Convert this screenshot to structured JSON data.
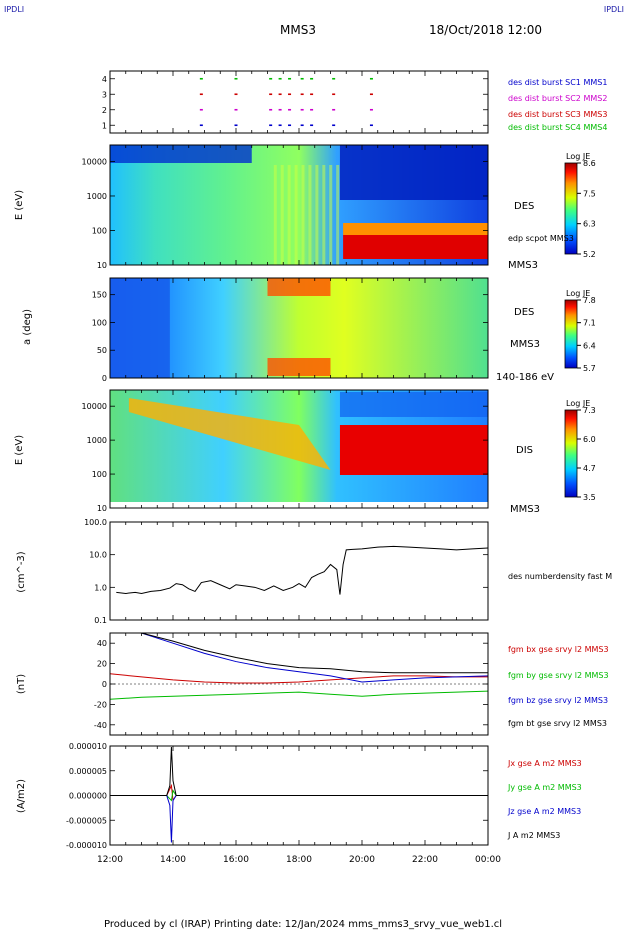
{
  "corner_label": "IPDLI",
  "header": {
    "spacecraft": "MMS3",
    "datetime": "18/Oct/2018 12:00"
  },
  "footer": "Produced by cl (IRAP)   Printing date: 12/Jan/2024   mms_mms3_srvy_vue_web1.cl",
  "x_ticks": [
    "12:00",
    "14:00",
    "16:00",
    "18:00",
    "20:00",
    "22:00",
    "00:00"
  ],
  "colors": {
    "mms1": "#0000cc",
    "mms2": "#cc00cc",
    "mms3": "#cc0000",
    "mms4": "#00bb00",
    "bt": "#000000"
  },
  "panels": {
    "burst": {
      "y_ticks": [
        "4",
        "3",
        "2",
        "1"
      ],
      "labels": [
        "des dist burst SC1 MMS1",
        "des dist burst SC2 MMS2",
        "des dist burst SC3 MMS3",
        "des dist burst SC4 MMS4"
      ]
    },
    "des_energy": {
      "ylabel": "E (eV)",
      "y_ticks": [
        "10000",
        "1000",
        "100",
        "10"
      ],
      "cb_title": "Log JE",
      "cb_ticks": [
        "8.6",
        "7.5",
        "6.3",
        "5.2"
      ],
      "label": "DES",
      "label_bottom": "MMS3",
      "overlay_label": "edp scpot MMS3"
    },
    "des_pitch": {
      "ylabel": "a (deg)",
      "y_ticks": [
        "150",
        "100",
        "50",
        "0"
      ],
      "cb_title": "Log JE",
      "cb_ticks": [
        "7.8",
        "7.1",
        "6.4",
        "5.7"
      ],
      "label": "DES",
      "label_mid": "MMS3",
      "label_bottom": "140-186 eV"
    },
    "dis_energy": {
      "ylabel": "E (eV)",
      "y_ticks": [
        "10000",
        "1000",
        "100",
        "10"
      ],
      "cb_title": "Log JE",
      "cb_ticks": [
        "7.3",
        "6.0",
        "4.7",
        "3.5"
      ],
      "label": "DIS",
      "label_bottom": "MMS3"
    },
    "density": {
      "ylabel": "(cm^-3)",
      "y_ticks": [
        "100.0",
        "10.0",
        "1.0",
        "0.1"
      ],
      "label": "des numberdensity fast M"
    },
    "bfield": {
      "ylabel": "(nT)",
      "y_ticks": [
        "40",
        "20",
        "0",
        "-20",
        "-40"
      ],
      "labels": [
        "fgm bx gse srvy l2 MMS3",
        "fgm by gse srvy l2 MMS3",
        "fgm bz gse srvy l2 MMS3",
        "fgm bt gse srvy l2 MMS3"
      ]
    },
    "current": {
      "ylabel": "(A/m2)",
      "y_ticks": [
        "0.000010",
        "0.000005",
        "0.000000",
        "-0.000005",
        "-0.000010"
      ],
      "labels": [
        "Jx gse A m2 MMS3",
        "Jy gse A m2 MMS3",
        "Jz gse A m2 MMS3",
        "J A m2 MMS3"
      ]
    }
  },
  "chart_data": [
    {
      "type": "scatter",
      "title": "",
      "x_range_hours": [
        12,
        24
      ],
      "y_range": [
        0.5,
        4.5
      ],
      "series": [
        {
          "name": "des dist burst SC1 MMS1",
          "x": [
            14.9,
            16,
            17.1,
            17.4,
            17.7,
            18.1,
            18.4,
            19.1,
            20.3
          ],
          "y": [
            1,
            1,
            1,
            1,
            1,
            1,
            1,
            1,
            1
          ]
        },
        {
          "name": "des dist burst SC2 MMS2",
          "x": [
            14.9,
            16,
            17.1,
            17.4,
            17.7,
            18.1,
            18.4,
            19.1,
            20.3
          ],
          "y": [
            2,
            2,
            2,
            2,
            2,
            2,
            2,
            2,
            2
          ]
        },
        {
          "name": "des dist burst SC3 MMS3",
          "x": [
            14.9,
            16,
            17.1,
            17.4,
            17.7,
            18.1,
            18.4,
            19.1,
            20.3
          ],
          "y": [
            3,
            3,
            3,
            3,
            3,
            3,
            3,
            3,
            3
          ]
        },
        {
          "name": "des dist burst SC4 MMS4",
          "x": [
            14.9,
            16,
            17.1,
            17.4,
            17.7,
            18.1,
            18.4,
            19.1,
            20.3
          ],
          "y": [
            4,
            4,
            4,
            4,
            4,
            4,
            4,
            4,
            4
          ]
        }
      ]
    },
    {
      "type": "heatmap",
      "title": "",
      "ylabel": "E (eV)",
      "y_scale": "log",
      "y_range": [
        10,
        30000
      ],
      "colorbar": "Log JE",
      "c_range": [
        5.2,
        8.6
      ]
    },
    {
      "type": "heatmap",
      "title": "",
      "ylabel": "a (deg)",
      "y_range": [
        0,
        180
      ],
      "colorbar": "Log JE",
      "c_range": [
        5.7,
        7.8
      ]
    },
    {
      "type": "heatmap",
      "title": "",
      "ylabel": "E (eV)",
      "y_scale": "log",
      "y_range": [
        10,
        30000
      ],
      "colorbar": "Log JE",
      "c_range": [
        3.5,
        7.3
      ]
    },
    {
      "type": "line",
      "title": "",
      "ylabel": "(cm^-3)",
      "y_scale": "log",
      "y_range": [
        0.1,
        100
      ],
      "series": [
        {
          "name": "des numberdensity fast M",
          "x": [
            12.2,
            12.5,
            12.8,
            13.0,
            13.3,
            13.6,
            13.9,
            14.1,
            14.3,
            14.5,
            14.7,
            14.9,
            15.2,
            15.5,
            15.8,
            16.0,
            16.3,
            16.6,
            16.9,
            17.2,
            17.5,
            17.8,
            18.0,
            18.2,
            18.4,
            18.6,
            18.8,
            19.0,
            19.2,
            19.3,
            19.4,
            19.5,
            19.7,
            20.0,
            20.5,
            21.0,
            21.5,
            22.0,
            22.5,
            23.0,
            23.5,
            24.0
          ],
          "y": [
            0.7,
            0.65,
            0.7,
            0.65,
            0.75,
            0.8,
            0.95,
            1.3,
            1.2,
            0.9,
            0.75,
            1.4,
            1.6,
            1.2,
            0.9,
            1.2,
            1.1,
            1.0,
            0.8,
            1.1,
            0.8,
            1.0,
            1.3,
            1.0,
            2.0,
            2.5,
            3.0,
            5.0,
            3.5,
            0.6,
            5.0,
            14,
            14.5,
            15,
            17,
            18,
            17,
            16,
            15,
            14,
            15,
            16
          ]
        }
      ]
    },
    {
      "type": "line",
      "title": "",
      "ylabel": "(nT)",
      "y_range": [
        -50,
        50
      ],
      "series": [
        {
          "name": "fgm bx gse srvy l2 MMS3",
          "x": [
            12,
            13,
            14,
            15,
            16,
            17,
            18,
            19,
            20,
            21,
            22,
            23,
            24
          ],
          "y": [
            10,
            7,
            4,
            2,
            1,
            1,
            2,
            4,
            6,
            8,
            8,
            7,
            7
          ]
        },
        {
          "name": "fgm by gse srvy l2 MMS3",
          "x": [
            12,
            13,
            14,
            15,
            16,
            17,
            18,
            19,
            20,
            21,
            22,
            23,
            24
          ],
          "y": [
            -15,
            -13,
            -12,
            -11,
            -10,
            -9,
            -8,
            -10,
            -12,
            -10,
            -9,
            -8,
            -7
          ]
        },
        {
          "name": "fgm bz gse srvy l2 MMS3",
          "x": [
            13,
            14,
            15,
            16,
            17,
            18,
            19,
            20,
            21,
            22,
            23,
            24
          ],
          "y": [
            50,
            40,
            30,
            22,
            16,
            12,
            8,
            2,
            4,
            6,
            7,
            8
          ]
        },
        {
          "name": "fgm bt gse srvy l2 MMS3",
          "x": [
            13,
            14,
            15,
            16,
            17,
            18,
            19,
            20,
            21,
            22,
            23,
            24
          ],
          "y": [
            50,
            42,
            33,
            26,
            20,
            16,
            15,
            12,
            11,
            11,
            11,
            11
          ]
        }
      ]
    },
    {
      "type": "line",
      "title": "",
      "ylabel": "(A/m2)",
      "y_range": [
        -1e-05,
        1e-05
      ],
      "series": [
        {
          "name": "Jx gse A m2 MMS3",
          "x": [
            12,
            13.8,
            13.95,
            14.0,
            14.1,
            24
          ],
          "y": [
            0,
            0,
            2e-06,
            -1e-06,
            0,
            0
          ]
        },
        {
          "name": "Jy gse A m2 MMS3",
          "x": [
            12,
            13.8,
            13.95,
            14.0,
            14.1,
            24
          ],
          "y": [
            0,
            0,
            -1e-06,
            1e-06,
            0,
            0
          ]
        },
        {
          "name": "Jz gse A m2 MMS3",
          "x": [
            12,
            13.8,
            13.9,
            13.95,
            14.0,
            14.1,
            24
          ],
          "y": [
            0,
            0,
            -2e-06,
            -9.5e-06,
            -1e-06,
            0,
            0
          ]
        },
        {
          "name": "J A m2 MMS3",
          "x": [
            12,
            13.8,
            13.9,
            13.95,
            14.0,
            14.1,
            24
          ],
          "y": [
            0,
            0,
            2e-06,
            9.8e-06,
            3e-06,
            0,
            0
          ]
        }
      ]
    }
  ]
}
